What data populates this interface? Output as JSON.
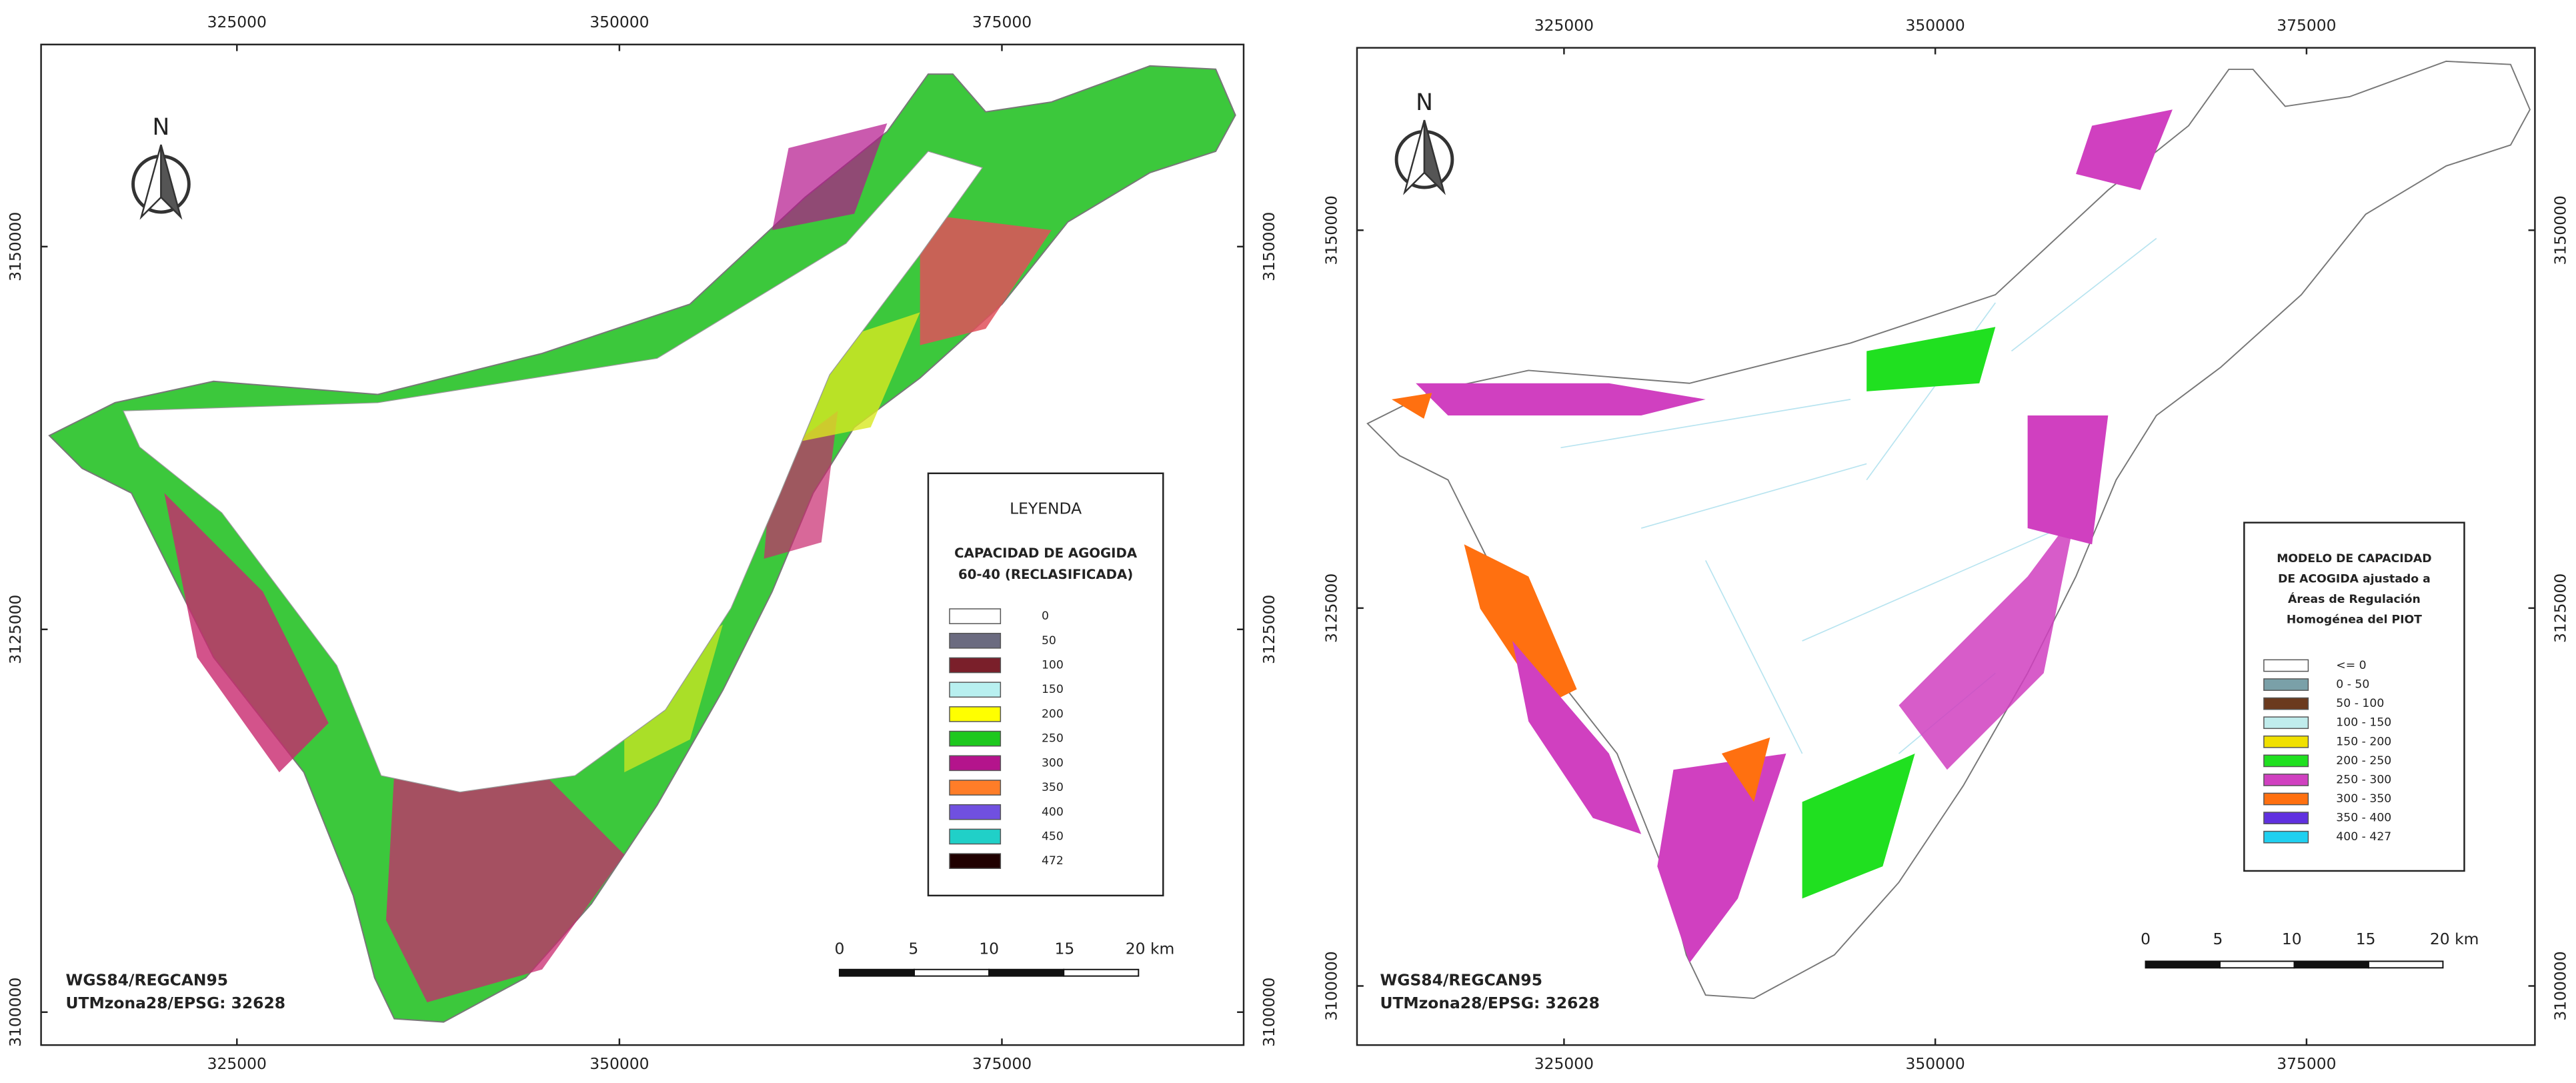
{
  "panels": [
    {
      "xticks": [
        325000,
        350000,
        375000
      ],
      "yticks": [
        3100000,
        3125000,
        3150000
      ],
      "xlim": [
        312200,
        390800
      ],
      "ylim": [
        3097850,
        3163200
      ],
      "north": "N",
      "legend": {
        "heading": "LEYENDA",
        "title_lines": [
          "CAPACIDAD DE AGOGIDA",
          "60-40 (RECLASIFICADA)"
        ],
        "items": [
          {
            "label": "0",
            "color": "#ffffff"
          },
          {
            "label": "50",
            "color": "#6b6b80"
          },
          {
            "label": "100",
            "color": "#7a1f2a"
          },
          {
            "label": "150",
            "color": "#b8f0f0"
          },
          {
            "label": "200",
            "color": "#ffff00"
          },
          {
            "label": "250",
            "color": "#1ec81e"
          },
          {
            "label": "300",
            "color": "#b4148c"
          },
          {
            "label": "350",
            "color": "#ff7d28"
          },
          {
            "label": "400",
            "color": "#7050e0"
          },
          {
            "label": "450",
            "color": "#20d0c8"
          },
          {
            "label": "472",
            "color": "#200000"
          }
        ]
      },
      "scalebar": [
        "0",
        "5",
        "10",
        "15",
        "20 km"
      ],
      "crs": [
        "WGS84/REGCAN95",
        "UTMzona28/EPSG: 32628"
      ]
    },
    {
      "xticks": [
        325000,
        350000,
        375000
      ],
      "yticks": [
        3100000,
        3125000,
        3150000
      ],
      "xlim": [
        311060,
        390380
      ],
      "ylim": [
        3096090,
        3162070
      ],
      "north": "N",
      "legend": {
        "title_lines": [
          "MODELO DE CAPACIDAD",
          "DE ACOGIDA ajustado a",
          "Áreas de Regulación",
          "Homogénea del PIOT"
        ],
        "items": [
          {
            "label": "<= 0",
            "color": "#ffffff"
          },
          {
            "label": "0 - 50",
            "color": "#7aa0a8"
          },
          {
            "label": "50 - 100",
            "color": "#6b3a1e"
          },
          {
            "label": "100 - 150",
            "color": "#c0ecec"
          },
          {
            "label": "150 - 200",
            "color": "#f0e000"
          },
          {
            "label": "200 - 250",
            "color": "#20e020"
          },
          {
            "label": "250 - 300",
            "color": "#d040c0"
          },
          {
            "label": "300 - 350",
            "color": "#ff7010"
          },
          {
            "label": "350 - 400",
            "color": "#6030e0"
          },
          {
            "label": "400 - 427",
            "color": "#20d0f0"
          }
        ]
      },
      "scalebar": [
        "0",
        "5",
        "10",
        "15",
        "20 km"
      ],
      "crs": [
        "WGS84/REGCAN95",
        "UTMzona28/EPSG: 32628"
      ]
    }
  ]
}
